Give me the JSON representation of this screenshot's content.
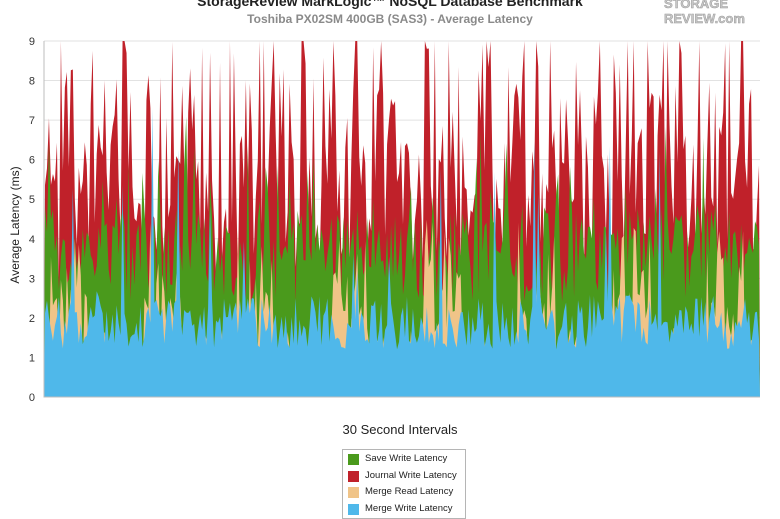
{
  "chart_data": {
    "type": "area",
    "title": "StorageReview MarkLogic™ NoSQL Database Benchmark",
    "subtitle": "Toshiba PX02SM 400GB (SAS3) - Average Latency",
    "xlabel": "30 Second Intervals",
    "ylabel": "Average Latency (ms)",
    "ylim": [
      0,
      9
    ],
    "yticks": [
      "0",
      "1",
      "2",
      "3",
      "4",
      "5",
      "6",
      "7",
      "8",
      "9"
    ],
    "grid": true,
    "legend_position": "bottom-center",
    "series": [
      {
        "name": "Save Write Latency",
        "color": "#4a9a1c",
        "typical_range": [
          2.5,
          6.5
        ]
      },
      {
        "name": "Journal Write Latency",
        "color": "#c0212a",
        "typical_range": [
          3.0,
          9.0
        ]
      },
      {
        "name": "Merge Read Latency",
        "color": "#f0c488",
        "typical_range": [
          0.2,
          5.0
        ]
      },
      {
        "name": "Merge Write Latency",
        "color": "#4fb8ea",
        "typical_range": [
          0.5,
          3.0
        ]
      }
    ]
  },
  "logo": {
    "text_top": "STORAGE",
    "text_bottom": "REVIEW.com"
  }
}
